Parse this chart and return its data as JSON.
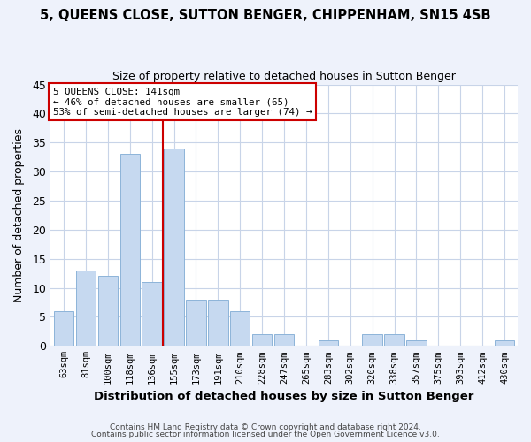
{
  "title": "5, QUEENS CLOSE, SUTTON BENGER, CHIPPENHAM, SN15 4SB",
  "subtitle": "Size of property relative to detached houses in Sutton Benger",
  "xlabel": "Distribution of detached houses by size in Sutton Benger",
  "ylabel": "Number of detached properties",
  "bin_labels": [
    "63sqm",
    "81sqm",
    "100sqm",
    "118sqm",
    "136sqm",
    "155sqm",
    "173sqm",
    "191sqm",
    "210sqm",
    "228sqm",
    "247sqm",
    "265sqm",
    "283sqm",
    "302sqm",
    "320sqm",
    "338sqm",
    "357sqm",
    "375sqm",
    "393sqm",
    "412sqm",
    "430sqm"
  ],
  "bar_values": [
    6,
    13,
    12,
    33,
    11,
    34,
    8,
    8,
    6,
    2,
    2,
    0,
    1,
    0,
    2,
    2,
    1,
    0,
    0,
    0,
    1
  ],
  "bar_color": "#c6d9f0",
  "bar_edge_color": "#8db4d9",
  "vline_x_index": 4,
  "vline_color": "#cc0000",
  "annotation_line1": "5 QUEENS CLOSE: 141sqm",
  "annotation_line2": "← 46% of detached houses are smaller (65)",
  "annotation_line3": "53% of semi-detached houses are larger (74) →",
  "annotation_box_color": "#ffffff",
  "annotation_box_edge_color": "#cc0000",
  "ylim": [
    0,
    45
  ],
  "yticks": [
    0,
    5,
    10,
    15,
    20,
    25,
    30,
    35,
    40,
    45
  ],
  "footer_line1": "Contains HM Land Registry data © Crown copyright and database right 2024.",
  "footer_line2": "Contains public sector information licensed under the Open Government Licence v3.0.",
  "bg_color": "#eef2fb",
  "plot_bg_color": "#ffffff",
  "grid_color": "#c8d4e8"
}
